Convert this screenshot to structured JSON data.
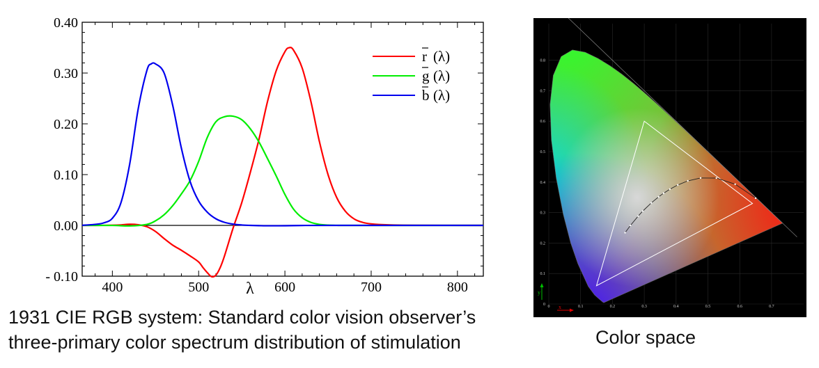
{
  "chart_data": [
    {
      "type": "line",
      "title": "",
      "xlabel": "λ",
      "ylabel": "",
      "xlim": [
        365,
        830
      ],
      "ylim": [
        -0.1,
        0.4
      ],
      "x_ticks": [
        "400",
        "500",
        "600",
        "700",
        "800"
      ],
      "y_ticks": [
        "- 0.10",
        "0.00",
        "0.10",
        "0.20",
        "0.30",
        "0.40"
      ],
      "legend_position": "top-right",
      "series": [
        {
          "name": "r̄ (λ)",
          "legend_main": "r",
          "color": "#ff0000",
          "points": [
            [
              365,
              0
            ],
            [
              380,
              0
            ],
            [
              400,
              0.0003
            ],
            [
              410,
              0.0009
            ],
            [
              420,
              0.0022
            ],
            [
              430,
              0.0012
            ],
            [
              440,
              -0.0026
            ],
            [
              450,
              -0.012
            ],
            [
              460,
              -0.026
            ],
            [
              470,
              -0.039
            ],
            [
              480,
              -0.049
            ],
            [
              490,
              -0.06
            ],
            [
              500,
              -0.072
            ],
            [
              505,
              -0.083
            ],
            [
              510,
              -0.093
            ],
            [
              515,
              -0.101
            ],
            [
              520,
              -0.098
            ],
            [
              525,
              -0.083
            ],
            [
              530,
              -0.06
            ],
            [
              540,
              -0.005
            ],
            [
              550,
              0.045
            ],
            [
              560,
              0.105
            ],
            [
              570,
              0.17
            ],
            [
              580,
              0.245
            ],
            [
              590,
              0.305
            ],
            [
              600,
              0.342
            ],
            [
              605,
              0.35
            ],
            [
              610,
              0.345
            ],
            [
              620,
              0.31
            ],
            [
              630,
              0.245
            ],
            [
              640,
              0.165
            ],
            [
              650,
              0.1
            ],
            [
              660,
              0.055
            ],
            [
              670,
              0.028
            ],
            [
              680,
              0.013
            ],
            [
              690,
              0.006
            ],
            [
              700,
              0.003
            ],
            [
              720,
              0.001
            ],
            [
              750,
              0.0002
            ],
            [
              830,
              0
            ]
          ]
        },
        {
          "name": "ḡ (λ)",
          "legend_main": "g",
          "color": "#00ee00",
          "points": [
            [
              365,
              0
            ],
            [
              400,
              -0.0001
            ],
            [
              420,
              -0.0011
            ],
            [
              440,
              0.002
            ],
            [
              450,
              0.009
            ],
            [
              460,
              0.021
            ],
            [
              470,
              0.039
            ],
            [
              480,
              0.062
            ],
            [
              490,
              0.088
            ],
            [
              500,
              0.126
            ],
            [
              510,
              0.173
            ],
            [
              520,
              0.204
            ],
            [
              530,
              0.214
            ],
            [
              540,
              0.215
            ],
            [
              550,
              0.208
            ],
            [
              560,
              0.19
            ],
            [
              570,
              0.164
            ],
            [
              580,
              0.131
            ],
            [
              590,
              0.097
            ],
            [
              600,
              0.061
            ],
            [
              610,
              0.032
            ],
            [
              620,
              0.015
            ],
            [
              630,
              0.006
            ],
            [
              640,
              0.002
            ],
            [
              650,
              0.0005
            ],
            [
              660,
              0.0001
            ],
            [
              680,
              0
            ],
            [
              830,
              0
            ]
          ]
        },
        {
          "name": "b̄ (λ)",
          "legend_main": "b",
          "color": "#0000ee",
          "points": [
            [
              365,
              0.0002
            ],
            [
              380,
              0.002
            ],
            [
              390,
              0.005
            ],
            [
              400,
              0.014
            ],
            [
              410,
              0.045
            ],
            [
              420,
              0.12
            ],
            [
              430,
              0.23
            ],
            [
              440,
              0.305
            ],
            [
              445,
              0.318
            ],
            [
              450,
              0.318
            ],
            [
              460,
              0.3
            ],
            [
              470,
              0.236
            ],
            [
              480,
              0.152
            ],
            [
              490,
              0.087
            ],
            [
              500,
              0.048
            ],
            [
              510,
              0.026
            ],
            [
              520,
              0.013
            ],
            [
              530,
              0.006
            ],
            [
              540,
              0.0025
            ],
            [
              550,
              0.0008
            ],
            [
              560,
              0
            ],
            [
              570,
              -0.0005
            ],
            [
              580,
              -0.0008
            ],
            [
              600,
              -0.0007
            ],
            [
              620,
              -0.0002
            ],
            [
              650,
              0
            ],
            [
              830,
              0
            ]
          ]
        }
      ]
    },
    {
      "type": "scatter",
      "title": "",
      "xlabel": "x",
      "ylabel": "y",
      "xlim": [
        0,
        0.8
      ],
      "ylim": [
        0,
        0.9
      ],
      "background": "#000000",
      "x_ticks": [
        "0",
        "0.1",
        "0.2",
        "0.3",
        "0.4",
        "0.5",
        "0.6",
        "0.7"
      ],
      "y_ticks": [
        "0",
        "0.1",
        "0.2",
        "0.3",
        "0.4",
        "0.5",
        "0.6",
        "0.7",
        "0.8"
      ],
      "spectral_locus": [
        [
          0.1741,
          0.005
        ],
        [
          0.1738,
          0.0049
        ],
        [
          0.1733,
          0.0048
        ],
        [
          0.1726,
          0.0048
        ],
        [
          0.1714,
          0.0051
        ],
        [
          0.1689,
          0.0069
        ],
        [
          0.1644,
          0.0109
        ],
        [
          0.1566,
          0.0177
        ],
        [
          0.144,
          0.0297
        ],
        [
          0.1241,
          0.0578
        ],
        [
          0.0913,
          0.1327
        ],
        [
          0.0687,
          0.2007
        ],
        [
          0.0454,
          0.295
        ],
        [
          0.0235,
          0.4127
        ],
        [
          0.0082,
          0.5384
        ],
        [
          0.0039,
          0.6548
        ],
        [
          0.0139,
          0.7502
        ],
        [
          0.0389,
          0.812
        ],
        [
          0.0743,
          0.8338
        ],
        [
          0.1142,
          0.8262
        ],
        [
          0.1547,
          0.8059
        ],
        [
          0.1929,
          0.7816
        ],
        [
          0.2296,
          0.7543
        ],
        [
          0.2658,
          0.7243
        ],
        [
          0.3016,
          0.6923
        ],
        [
          0.3373,
          0.6589
        ],
        [
          0.3731,
          0.6245
        ],
        [
          0.4087,
          0.5896
        ],
        [
          0.4441,
          0.5547
        ],
        [
          0.4788,
          0.5202
        ],
        [
          0.5125,
          0.4866
        ],
        [
          0.5448,
          0.4544
        ],
        [
          0.5752,
          0.4242
        ],
        [
          0.6029,
          0.3965
        ],
        [
          0.627,
          0.3725
        ],
        [
          0.6482,
          0.3514
        ],
        [
          0.6658,
          0.334
        ],
        [
          0.6801,
          0.3197
        ],
        [
          0.6915,
          0.3083
        ],
        [
          0.7006,
          0.2993
        ],
        [
          0.7079,
          0.292
        ],
        [
          0.714,
          0.2859
        ],
        [
          0.719,
          0.2809
        ],
        [
          0.723,
          0.277
        ],
        [
          0.726,
          0.274
        ],
        [
          0.7347,
          0.2653
        ]
      ],
      "primaries_triangle": [
        [
          0.64,
          0.33
        ],
        [
          0.3,
          0.6
        ],
        [
          0.15,
          0.06
        ]
      ],
      "planckian_locus": [
        [
          0.6499,
          0.3474
        ],
        [
          0.5857,
          0.3931
        ],
        [
          0.5267,
          0.4133
        ],
        [
          0.477,
          0.4137
        ],
        [
          0.4369,
          0.4041
        ],
        [
          0.4053,
          0.3907
        ],
        [
          0.3805,
          0.3768
        ],
        [
          0.3608,
          0.3636
        ],
        [
          0.3451,
          0.3516
        ],
        [
          0.3221,
          0.3318
        ],
        [
          0.2952,
          0.3048
        ],
        [
          0.2807,
          0.2883
        ],
        [
          0.2565,
          0.2577
        ],
        [
          0.2399,
          0.2341
        ]
      ]
    }
  ],
  "captions": {
    "left_line1": "1931 CIE RGB system: Standard color vision observer’s",
    "left_line2": "three-primary color spectrum distribution of stimulation",
    "right": "Color space"
  }
}
